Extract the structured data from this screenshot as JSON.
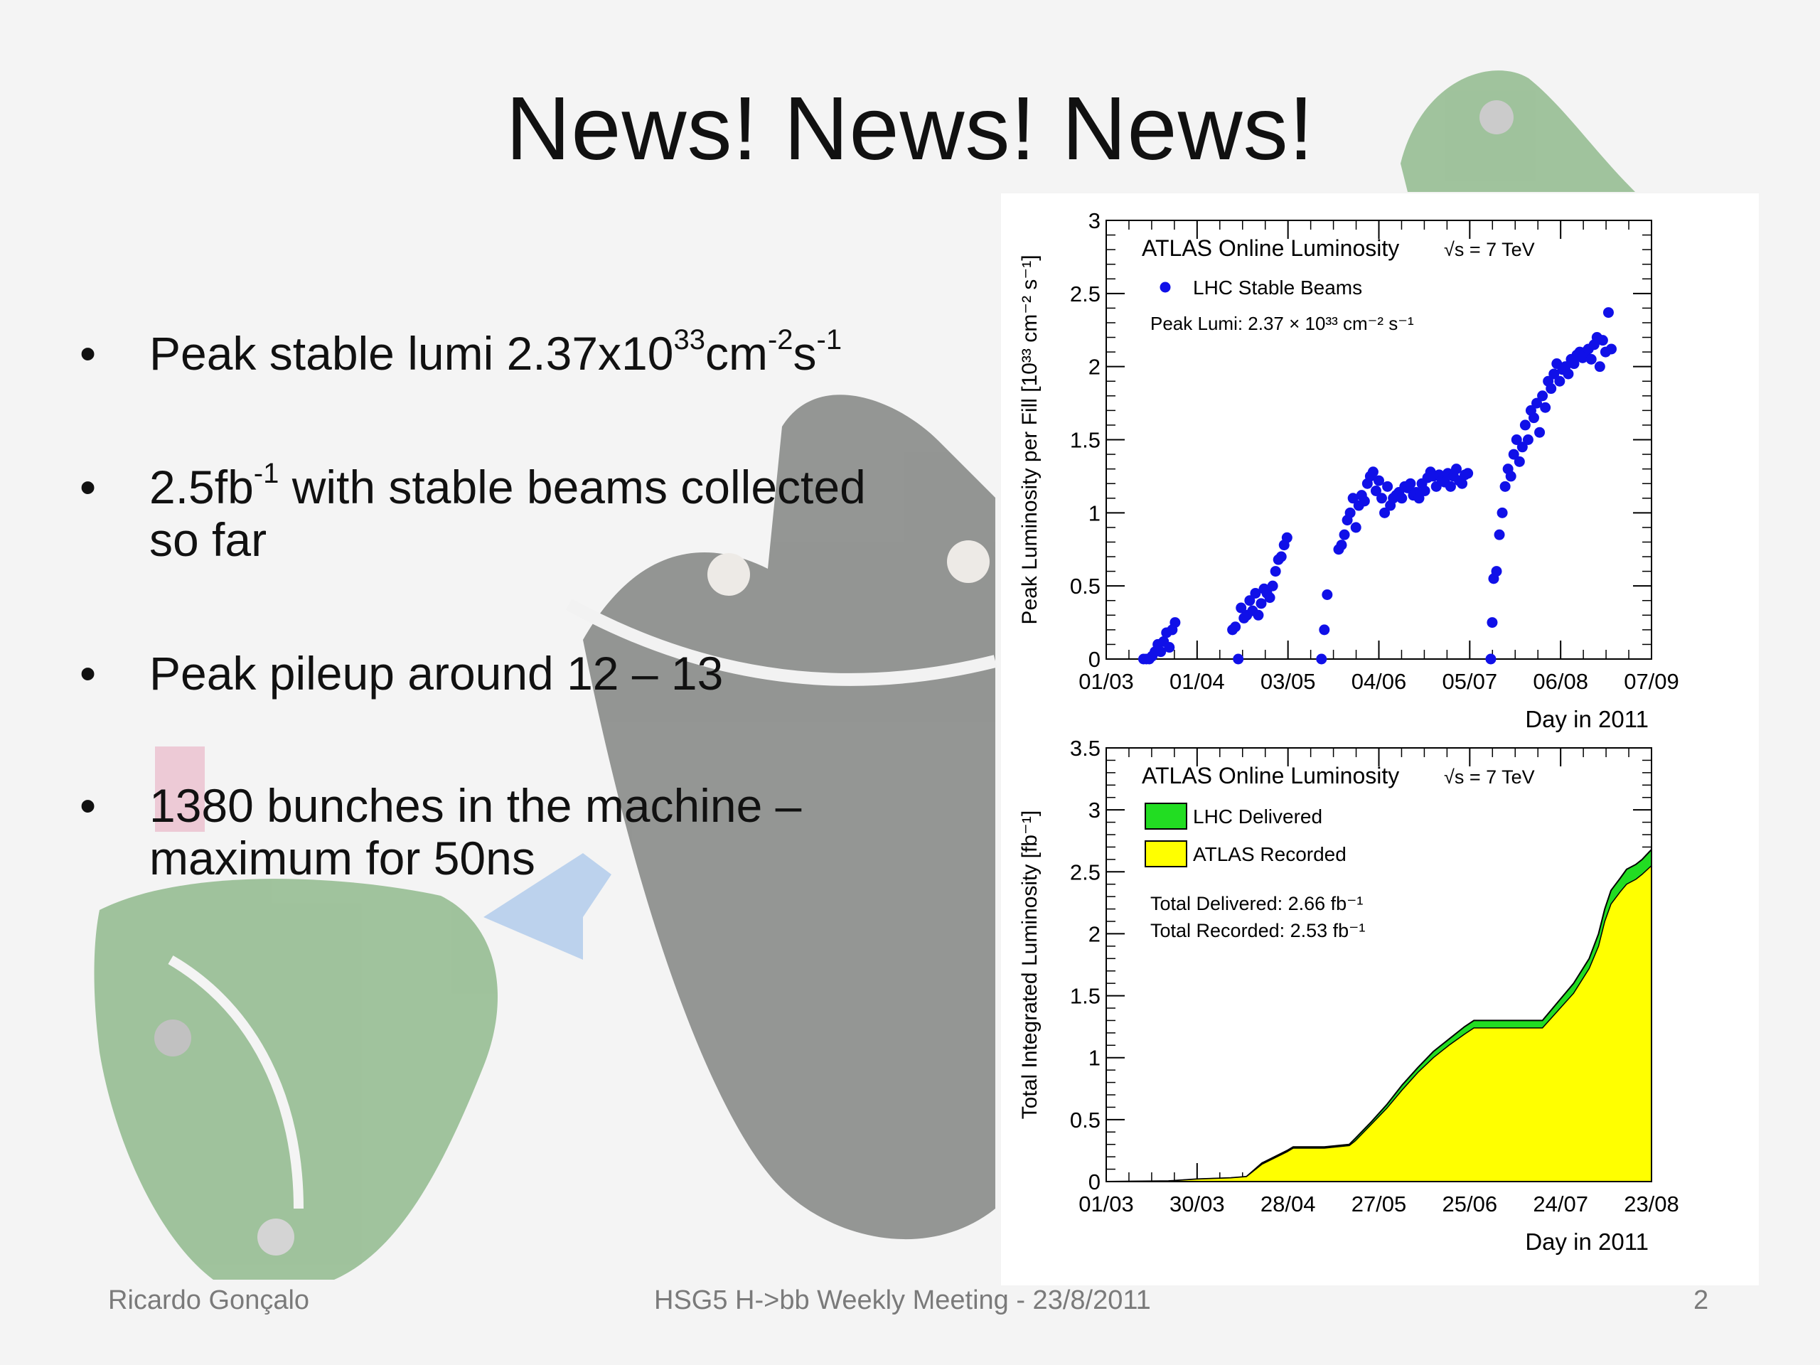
{
  "slide": {
    "title": "News! News! News!",
    "bullets": [
      {
        "parts": [
          {
            "t": "Peak stable lumi 2.37x10"
          },
          {
            "t": "33",
            "sup": true
          },
          {
            "t": "cm"
          },
          {
            "t": "-2",
            "sup": true
          },
          {
            "t": "s"
          },
          {
            "t": "-1",
            "sup": true
          }
        ]
      },
      {
        "parts": [
          {
            "t": "2.5fb"
          },
          {
            "t": "-1",
            "sup": true
          },
          {
            "t": " with stable beams collected"
          }
        ],
        "line2": "so far"
      },
      {
        "parts": [
          {
            "t": "Peak pileup around 12 – 13"
          }
        ]
      },
      {
        "parts": [
          {
            "t": "1380 bunches in the machine –"
          }
        ],
        "line2": "maximum for 50ns"
      }
    ],
    "bullet_glyph": "•",
    "footer": {
      "author": "Ricardo Gonçalo",
      "meeting": "HSG5 H->bb Weekly Meeting - 23/8/2011",
      "page": "2"
    }
  },
  "chart_data": [
    {
      "type": "scatter",
      "title": "ATLAS Online Luminosity",
      "energy_label": "√s = 7 TeV",
      "legend": [
        "LHC Stable Beams"
      ],
      "annotation": "Peak Lumi: 2.37 × 10³³ cm⁻² s⁻¹",
      "ylabel": "Peak Luminosity per Fill [10³³ cm⁻² s⁻¹]",
      "xlabel": "Day in 2011",
      "xtick_labels": [
        "01/03",
        "01/04",
        "03/05",
        "04/06",
        "05/07",
        "06/08",
        "07/09"
      ],
      "ytick_labels": [
        "0",
        "0.5",
        "1",
        "1.5",
        "2",
        "2.5",
        "3"
      ],
      "xlim_days": [
        0,
        190
      ],
      "ylim": [
        0,
        3
      ],
      "marker_color": "#1010e8",
      "series": [
        {
          "name": "LHC Stable Beams",
          "x_days": [
            13,
            14,
            15,
            16,
            17,
            18,
            19,
            20,
            21,
            22,
            23,
            24,
            44,
            45,
            46,
            47,
            48,
            49,
            50,
            51,
            52,
            53,
            54,
            55,
            56,
            57,
            58,
            59,
            60,
            61,
            62,
            63,
            75,
            76,
            77,
            81,
            82,
            83,
            84,
            85,
            86,
            87,
            88,
            89,
            90,
            91,
            92,
            93,
            94,
            95,
            96,
            97,
            98,
            99,
            100,
            101,
            102,
            103,
            104,
            105,
            106,
            107,
            108,
            109,
            110,
            111,
            112,
            113,
            114,
            115,
            116,
            117,
            118,
            119,
            120,
            121,
            122,
            123,
            124,
            125,
            126,
            134,
            134.5,
            135,
            136,
            137,
            138,
            139,
            140,
            141,
            142,
            143,
            144,
            145,
            146,
            147,
            148,
            149,
            150,
            151,
            152,
            153,
            154,
            155,
            156,
            157,
            158,
            159,
            160,
            161,
            162,
            163,
            164,
            165,
            166,
            167,
            168,
            169,
            170,
            171,
            172,
            173,
            174,
            175,
            176
          ],
          "y": [
            0.0,
            0.0,
            0.0,
            0.02,
            0.05,
            0.1,
            0.05,
            0.12,
            0.18,
            0.08,
            0.2,
            0.25,
            0.2,
            0.22,
            0.0,
            0.35,
            0.28,
            0.3,
            0.4,
            0.33,
            0.45,
            0.3,
            0.38,
            0.48,
            0.45,
            0.42,
            0.5,
            0.6,
            0.68,
            0.7,
            0.78,
            0.83,
            0.0,
            0.2,
            0.44,
            0.75,
            0.78,
            0.85,
            0.95,
            1.0,
            1.1,
            0.9,
            1.05,
            1.12,
            1.08,
            1.2,
            1.25,
            1.28,
            1.15,
            1.22,
            1.1,
            1.0,
            1.18,
            1.05,
            1.1,
            1.12,
            1.14,
            1.1,
            1.18,
            1.17,
            1.2,
            1.12,
            1.14,
            1.1,
            1.2,
            1.15,
            1.24,
            1.28,
            1.25,
            1.18,
            1.26,
            1.22,
            1.21,
            1.27,
            1.18,
            1.25,
            1.3,
            1.22,
            1.2,
            1.26,
            1.27,
            0.0,
            0.25,
            0.55,
            0.6,
            0.85,
            1.0,
            1.18,
            1.3,
            1.25,
            1.4,
            1.5,
            1.35,
            1.45,
            1.6,
            1.5,
            1.7,
            1.65,
            1.75,
            1.55,
            1.8,
            1.72,
            1.9,
            1.85,
            1.95,
            2.02,
            1.9,
            1.98,
            2.0,
            1.95,
            2.05,
            2.02,
            2.08,
            2.1,
            2.06,
            2.1,
            2.12,
            2.05,
            2.15,
            2.2,
            2.0,
            2.18,
            2.1,
            2.37,
            2.12
          ]
        }
      ]
    },
    {
      "type": "area",
      "title": "ATLAS Online Luminosity",
      "energy_label": "√s = 7 TeV",
      "legend": [
        "LHC Delivered",
        "ATLAS Recorded"
      ],
      "annotations": [
        "Total Delivered: 2.66 fb⁻¹",
        "Total Recorded: 2.53 fb⁻¹"
      ],
      "ylabel": "Total Integrated Luminosity [fb⁻¹]",
      "xlabel": "Day in 2011",
      "xtick_labels": [
        "01/03",
        "30/03",
        "28/04",
        "27/05",
        "25/06",
        "24/07",
        "23/08"
      ],
      "ytick_labels": [
        "0",
        "0.5",
        "1",
        "1.5",
        "2",
        "2.5",
        "3",
        "3.5"
      ],
      "xlim_days": [
        0,
        175
      ],
      "ylim": [
        0,
        3.5
      ],
      "colors": {
        "delivered": "#22dd22",
        "recorded": "#ffff00"
      },
      "x_days": [
        0,
        20,
        29,
        40,
        45,
        50,
        58,
        60,
        70,
        78,
        80,
        85,
        90,
        95,
        100,
        105,
        110,
        115,
        118,
        120,
        125,
        127,
        130,
        140,
        145,
        150,
        155,
        158,
        160,
        162,
        165,
        167,
        170,
        172,
        175
      ],
      "series": [
        {
          "name": "LHC Delivered",
          "values": [
            0,
            0.005,
            0.02,
            0.03,
            0.04,
            0.15,
            0.25,
            0.28,
            0.28,
            0.3,
            0.35,
            0.48,
            0.62,
            0.78,
            0.92,
            1.05,
            1.15,
            1.25,
            1.3,
            1.3,
            1.3,
            1.3,
            1.3,
            1.3,
            1.45,
            1.6,
            1.8,
            2.0,
            2.2,
            2.35,
            2.45,
            2.52,
            2.56,
            2.6,
            2.68
          ]
        },
        {
          "name": "ATLAS Recorded",
          "values": [
            0,
            0.005,
            0.02,
            0.03,
            0.04,
            0.14,
            0.24,
            0.27,
            0.27,
            0.29,
            0.33,
            0.46,
            0.59,
            0.74,
            0.88,
            1.0,
            1.1,
            1.19,
            1.24,
            1.24,
            1.24,
            1.24,
            1.24,
            1.24,
            1.38,
            1.52,
            1.72,
            1.9,
            2.1,
            2.24,
            2.34,
            2.4,
            2.44,
            2.48,
            2.55
          ]
        }
      ]
    }
  ]
}
